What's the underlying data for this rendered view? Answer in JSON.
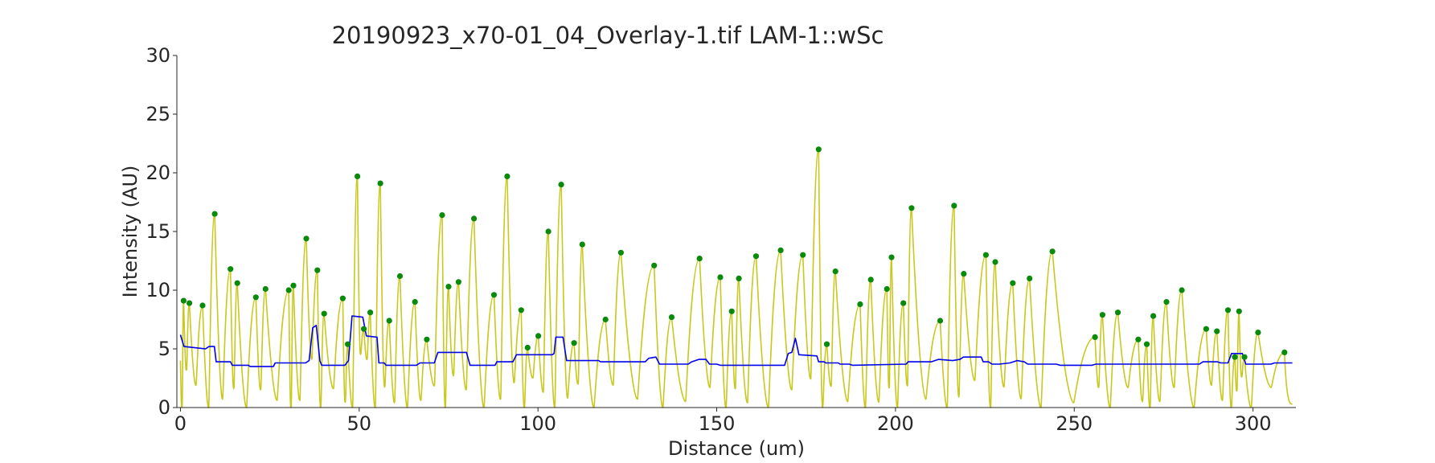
{
  "chart_data": {
    "type": "line",
    "title": "20190923_x70-01_04_Overlay-1.tif LAM-1::wSc",
    "xlabel": "Distance (um)",
    "ylabel": "Intensity (AU)",
    "xlim": [
      -1,
      312
    ],
    "ylim": [
      0,
      30
    ],
    "xticks": [
      0,
      50,
      100,
      150,
      200,
      250,
      300
    ],
    "yticks": [
      0,
      5,
      10,
      15,
      20,
      25,
      30
    ],
    "grid": false,
    "legend": "none",
    "colors": {
      "signal": "#c8c81e",
      "baseline": "#0000ee",
      "peaks": "#0a8a0a"
    },
    "series": [
      {
        "role": "intensity",
        "peaks": [
          [
            0.9,
            9.1
          ],
          [
            2.5,
            8.9
          ],
          [
            6.2,
            8.7
          ],
          [
            9.6,
            16.5
          ],
          [
            14.0,
            11.8
          ],
          [
            15.9,
            10.6
          ],
          [
            21.1,
            9.4
          ],
          [
            23.8,
            10.1
          ],
          [
            30.3,
            10.0
          ],
          [
            31.6,
            10.4
          ],
          [
            35.2,
            14.4
          ],
          [
            38.3,
            11.7
          ],
          [
            40.2,
            8.0
          ],
          [
            45.4,
            9.3
          ],
          [
            46.8,
            5.4
          ],
          [
            49.5,
            19.7
          ],
          [
            51.3,
            6.7
          ],
          [
            53.1,
            8.1
          ],
          [
            55.9,
            19.1
          ],
          [
            58.4,
            7.4
          ],
          [
            61.4,
            11.2
          ],
          [
            65.6,
            9.0
          ],
          [
            68.9,
            5.8
          ],
          [
            73.2,
            16.4
          ],
          [
            75.0,
            10.3
          ],
          [
            77.8,
            10.7
          ],
          [
            82.1,
            16.1
          ],
          [
            87.7,
            9.6
          ],
          [
            91.4,
            19.7
          ],
          [
            95.3,
            8.3
          ],
          [
            97.1,
            5.1
          ],
          [
            100.1,
            6.1
          ],
          [
            102.9,
            15.0
          ],
          [
            106.5,
            19.0
          ],
          [
            110.1,
            5.5
          ],
          [
            112.4,
            13.9
          ],
          [
            118.9,
            7.5
          ],
          [
            123.2,
            13.2
          ],
          [
            132.5,
            12.1
          ],
          [
            137.4,
            7.7
          ],
          [
            145.2,
            12.7
          ],
          [
            151.0,
            11.1
          ],
          [
            154.2,
            8.2
          ],
          [
            156.2,
            11.0
          ],
          [
            161.0,
            12.9
          ],
          [
            167.9,
            13.4
          ],
          [
            174.1,
            13.0
          ],
          [
            178.5,
            22.0
          ],
          [
            180.8,
            5.4
          ],
          [
            183.2,
            11.6
          ],
          [
            190.1,
            8.8
          ],
          [
            193.1,
            10.9
          ],
          [
            197.6,
            10.1
          ],
          [
            198.9,
            12.8
          ],
          [
            202.2,
            8.9
          ],
          [
            204.5,
            17.0
          ],
          [
            212.5,
            7.4
          ],
          [
            216.4,
            17.2
          ],
          [
            219.1,
            11.4
          ],
          [
            225.3,
            13.0
          ],
          [
            227.9,
            12.4
          ],
          [
            232.8,
            10.6
          ],
          [
            237.5,
            11.0
          ],
          [
            243.9,
            13.3
          ],
          [
            255.8,
            6.0
          ],
          [
            257.9,
            7.9
          ],
          [
            262.2,
            8.1
          ],
          [
            267.9,
            5.8
          ],
          [
            270.3,
            5.4
          ],
          [
            272.1,
            7.8
          ],
          [
            275.8,
            9.0
          ],
          [
            280.1,
            10.0
          ],
          [
            286.9,
            6.7
          ],
          [
            289.9,
            6.5
          ],
          [
            293.0,
            8.3
          ],
          [
            294.9,
            4.3
          ],
          [
            296.1,
            8.2
          ],
          [
            297.6,
            4.3
          ],
          [
            301.4,
            6.4
          ],
          [
            308.8,
            4.7
          ]
        ]
      },
      {
        "role": "baseline",
        "points": [
          [
            0,
            6.2
          ],
          [
            1,
            5.2
          ],
          [
            7,
            5.0
          ],
          [
            8,
            5.2
          ],
          [
            9.5,
            5.2
          ],
          [
            10,
            3.9
          ],
          [
            14,
            3.9
          ],
          [
            14.5,
            3.6
          ],
          [
            19,
            3.6
          ],
          [
            19.5,
            3.5
          ],
          [
            26,
            3.5
          ],
          [
            26.5,
            3.8
          ],
          [
            35,
            3.8
          ],
          [
            36,
            4.0
          ],
          [
            37,
            6.8
          ],
          [
            38,
            7.0
          ],
          [
            39,
            4.0
          ],
          [
            39.5,
            3.6
          ],
          [
            46,
            3.6
          ],
          [
            47,
            4.0
          ],
          [
            48,
            7.8
          ],
          [
            51,
            7.7
          ],
          [
            52,
            6.1
          ],
          [
            55,
            6.0
          ],
          [
            55.5,
            3.8
          ],
          [
            57,
            3.8
          ],
          [
            57.5,
            3.6
          ],
          [
            66,
            3.6
          ],
          [
            67,
            3.8
          ],
          [
            71,
            3.8
          ],
          [
            72,
            4.7
          ],
          [
            80,
            4.7
          ],
          [
            81,
            3.6
          ],
          [
            88,
            3.6
          ],
          [
            88.5,
            3.9
          ],
          [
            93,
            3.9
          ],
          [
            94,
            4.5
          ],
          [
            104,
            4.5
          ],
          [
            104.5,
            4.6
          ],
          [
            105,
            6.0
          ],
          [
            107,
            6.0
          ],
          [
            108,
            4.0
          ],
          [
            117,
            4.0
          ],
          [
            117.5,
            3.9
          ],
          [
            130,
            3.9
          ],
          [
            131,
            4.2
          ],
          [
            133,
            4.3
          ],
          [
            134,
            3.7
          ],
          [
            142,
            3.7
          ],
          [
            143,
            3.9
          ],
          [
            145,
            4.1
          ],
          [
            147,
            4.1
          ],
          [
            148,
            3.7
          ],
          [
            150,
            3.7
          ],
          [
            151,
            3.6
          ],
          [
            169,
            3.6
          ],
          [
            170,
            4.6
          ],
          [
            171,
            4.7
          ],
          [
            172,
            5.9
          ],
          [
            173,
            4.5
          ],
          [
            178,
            4.4
          ],
          [
            178.5,
            3.9
          ],
          [
            180,
            3.9
          ],
          [
            180.5,
            3.8
          ],
          [
            184,
            3.8
          ],
          [
            184.5,
            3.7
          ],
          [
            187,
            3.7
          ],
          [
            188,
            3.6
          ],
          [
            203,
            3.7
          ],
          [
            203.5,
            3.9
          ],
          [
            210,
            3.9
          ],
          [
            212,
            4.1
          ],
          [
            216,
            4.0
          ],
          [
            218,
            4.1
          ],
          [
            219,
            4.3
          ],
          [
            224,
            4.3
          ],
          [
            224.5,
            3.9
          ],
          [
            226,
            3.9
          ],
          [
            227,
            3.7
          ],
          [
            229,
            3.7
          ],
          [
            232,
            3.8
          ],
          [
            234,
            4.0
          ],
          [
            236,
            3.9
          ],
          [
            237,
            3.7
          ],
          [
            245,
            3.7
          ],
          [
            246,
            3.6
          ],
          [
            255,
            3.6
          ],
          [
            256,
            3.7
          ],
          [
            285,
            3.7
          ],
          [
            286,
            3.9
          ],
          [
            290,
            3.9
          ],
          [
            291,
            3.8
          ],
          [
            293,
            3.8
          ],
          [
            294,
            4.6
          ],
          [
            297,
            4.6
          ],
          [
            298,
            3.7
          ],
          [
            305,
            3.7
          ],
          [
            306,
            3.8
          ],
          [
            311,
            3.8
          ]
        ]
      }
    ]
  }
}
